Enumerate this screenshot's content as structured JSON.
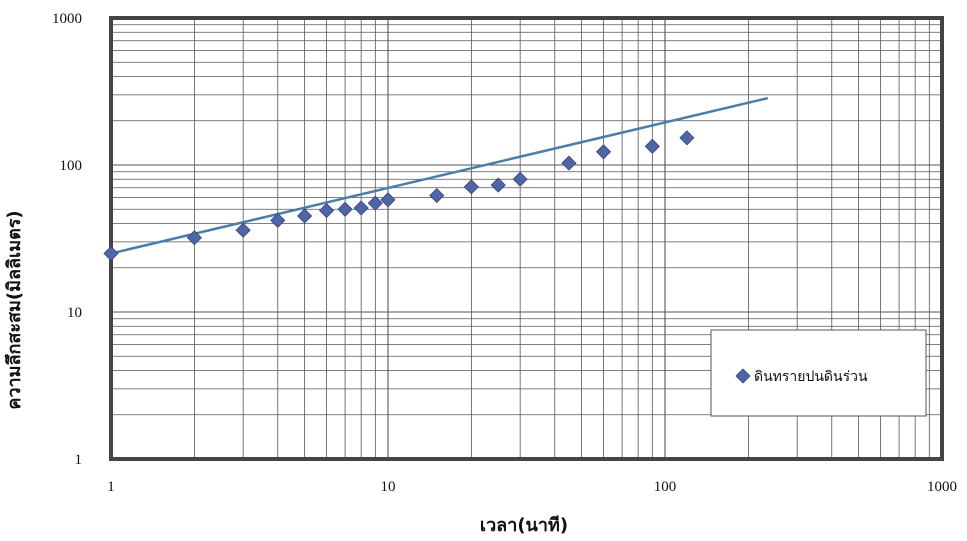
{
  "chart_data": {
    "type": "scatter",
    "title": "",
    "xlabel": "เวลา(นาที)",
    "ylabel": "ความลึกสะสม(มิลลิเมตร)",
    "x_scale": "log",
    "y_scale": "log",
    "xlim": [
      1,
      1000
    ],
    "ylim": [
      1,
      1000
    ],
    "x_ticks": [
      "1",
      "10",
      "100",
      "1000"
    ],
    "y_ticks": [
      "1",
      "10",
      "100",
      "1000"
    ],
    "grid": true,
    "legend_position": "right",
    "series": [
      {
        "name": "ดินทรายปนดินร่วน",
        "marker": "diamond",
        "color": "#4f65a8",
        "x": [
          1,
          2,
          3,
          4,
          5,
          6,
          7,
          8,
          9,
          10,
          15,
          20,
          25,
          30,
          45,
          60,
          90,
          120
        ],
        "y": [
          25,
          32,
          36,
          42,
          45,
          49,
          50,
          51,
          55,
          58,
          62,
          71,
          73,
          80,
          103,
          123,
          134,
          153
        ]
      }
    ],
    "fit_line": {
      "color": "#4a7ea8",
      "x": [
        1,
        235
      ],
      "y": [
        25,
        285
      ]
    }
  }
}
